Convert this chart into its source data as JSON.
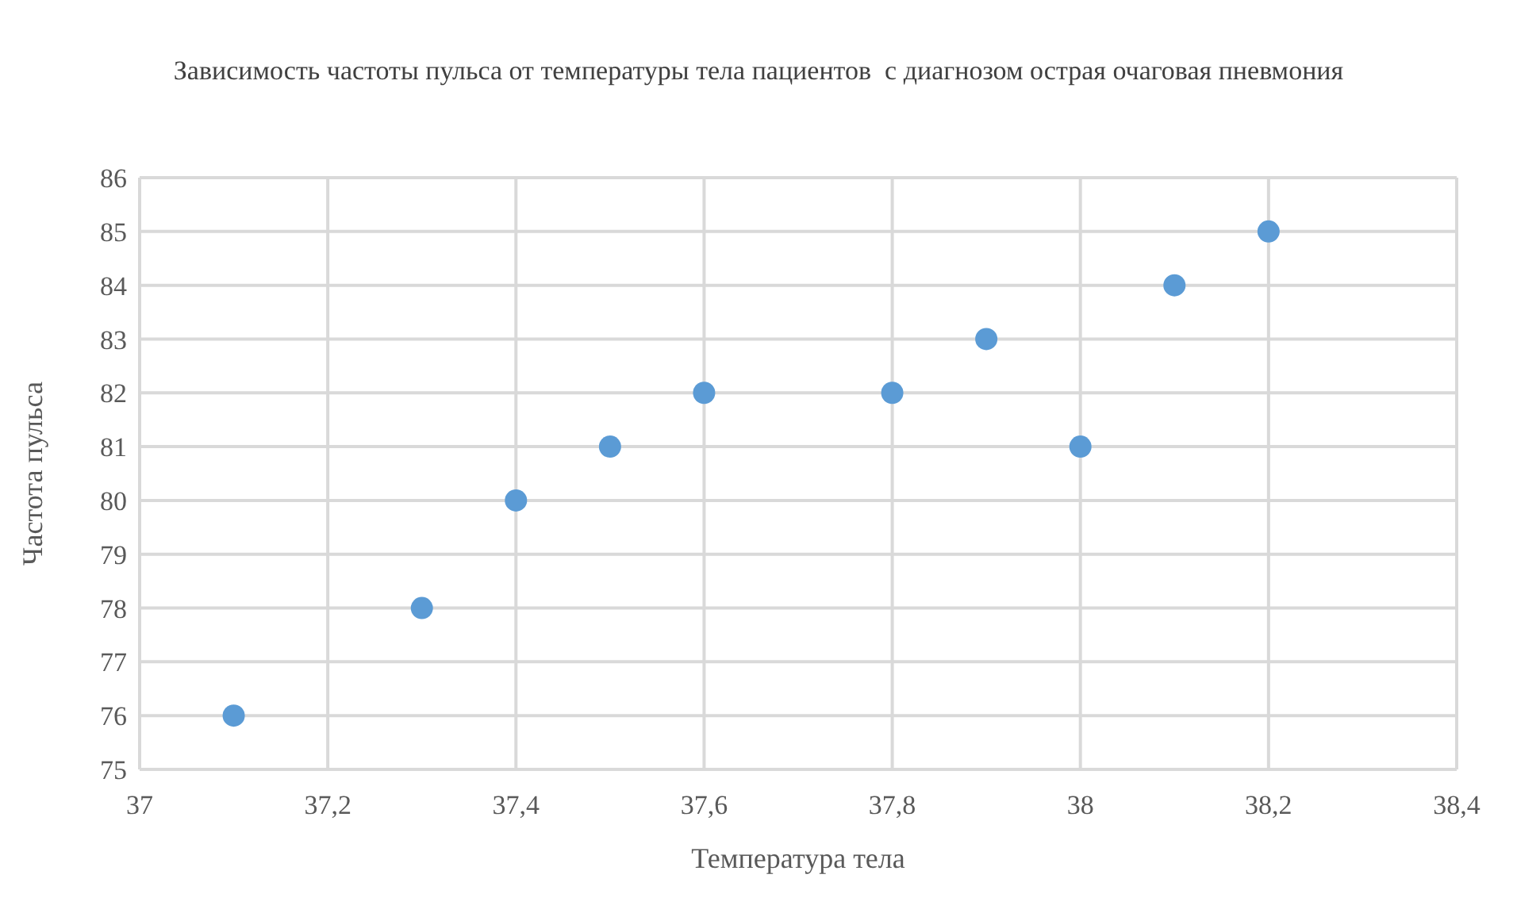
{
  "chart_data": {
    "type": "scatter",
    "title": "Зависимость частоты пульса от температуры тела пациентов  с диагнозом острая очаговая пневмония",
    "xlabel": "Температура  тела",
    "ylabel": "Частота пульса",
    "series": [
      {
        "color": "#5b9bd5",
        "x": [
          37.1,
          37.3,
          37.4,
          37.5,
          37.6,
          37.8,
          37.9,
          38,
          38.1,
          38.2
        ],
        "values": [
          76,
          78,
          80,
          81,
          82,
          82,
          83,
          81,
          84,
          85
        ]
      }
    ],
    "xlim": [
      37,
      38.4
    ],
    "xticks": [
      37,
      {
        "value": 37.2,
        "label": "37,2"
      },
      {
        "value": 37.4,
        "label": "37,4"
      },
      {
        "value": 37.6,
        "label": "37,6"
      },
      {
        "value": 37.8,
        "label": "37,8"
      },
      38,
      {
        "value": 38.2,
        "label": "38,2"
      },
      {
        "value": 38.4,
        "label": "38,4"
      }
    ],
    "ylim": [
      75,
      86
    ],
    "yticks": [
      75,
      76,
      77,
      78,
      79,
      80,
      81,
      82,
      83,
      84,
      85,
      86
    ],
    "grid": true,
    "marker": "circle"
  }
}
